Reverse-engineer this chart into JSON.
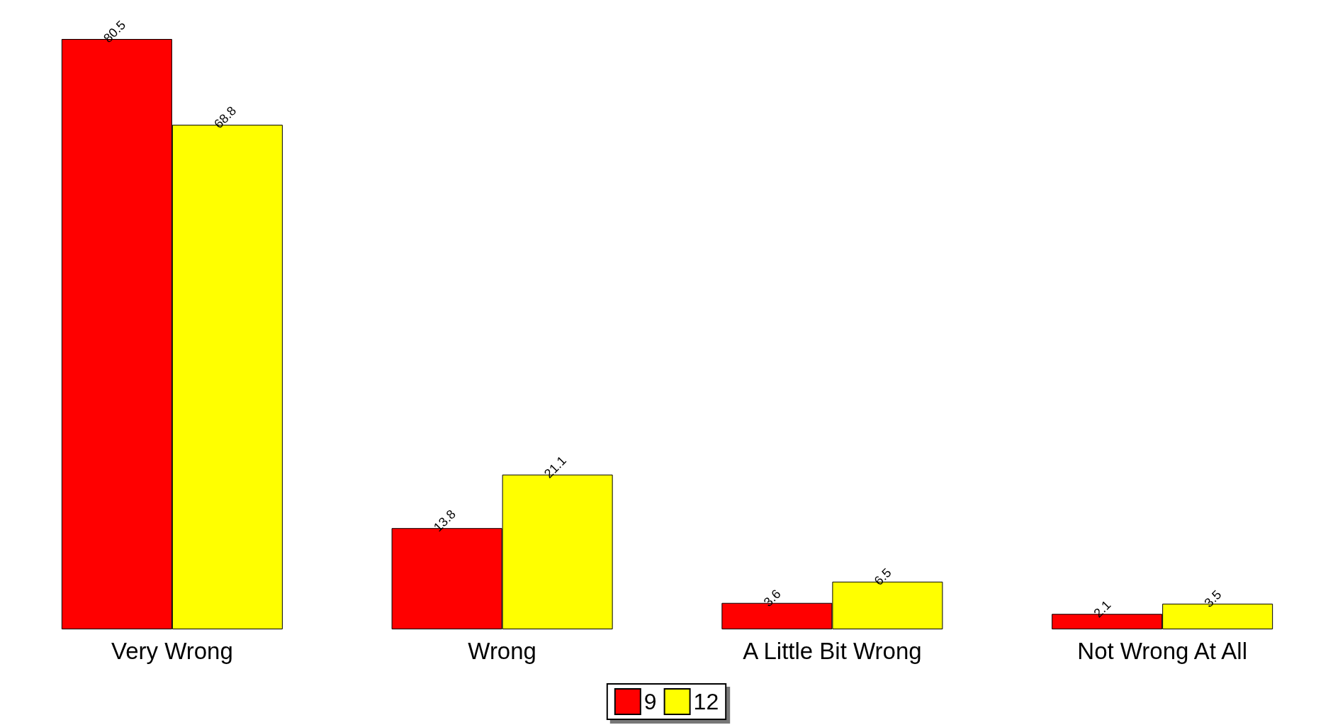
{
  "chart_data": {
    "type": "bar",
    "categories": [
      "Very Wrong",
      "Wrong",
      "A Little Bit Wrong",
      "Not Wrong At All"
    ],
    "series": [
      {
        "name": "9",
        "color": "#ff0000",
        "values": [
          80.5,
          13.8,
          3.6,
          2.1
        ]
      },
      {
        "name": "12",
        "color": "#ffff00",
        "values": [
          68.8,
          21.1,
          6.5,
          3.5
        ]
      }
    ],
    "data_labels": true,
    "legend": "bottom"
  }
}
